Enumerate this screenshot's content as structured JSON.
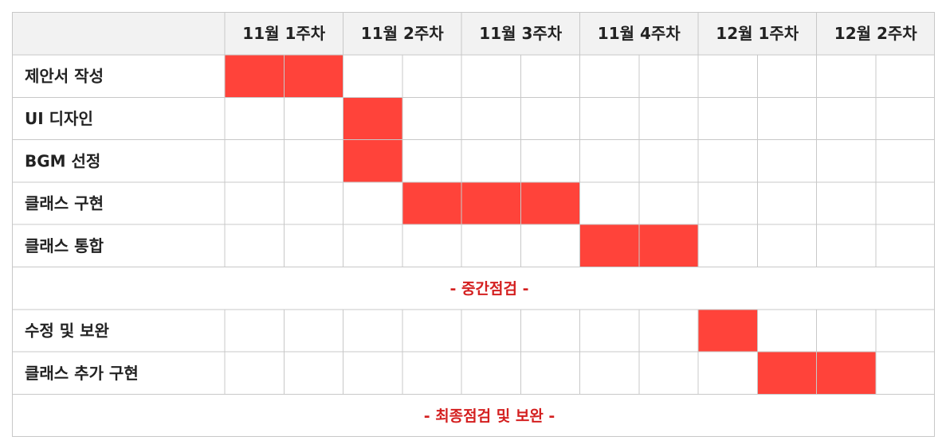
{
  "chart_data": {
    "type": "gantt",
    "weeks": [
      "11월 1주차",
      "11월 2주차",
      "11월 3주차",
      "11월 4주차",
      "12월 1주차",
      "12월 2주차"
    ],
    "slots_per_week": 2,
    "rows": [
      {
        "kind": "task",
        "label": "제안서 작성",
        "start_slot": 0,
        "end_slot": 1
      },
      {
        "kind": "task",
        "label": "UI 디자인",
        "start_slot": 2,
        "end_slot": 2
      },
      {
        "kind": "task",
        "label": "BGM 선정",
        "start_slot": 2,
        "end_slot": 2
      },
      {
        "kind": "task",
        "label": "클래스 구현",
        "start_slot": 3,
        "end_slot": 5
      },
      {
        "kind": "task",
        "label": "클래스 통합",
        "start_slot": 6,
        "end_slot": 7
      },
      {
        "kind": "milestone",
        "label": "- 중간점검 -"
      },
      {
        "kind": "task",
        "label": "수정 및 보완",
        "start_slot": 8,
        "end_slot": 8
      },
      {
        "kind": "task",
        "label": "클래스 추가 구현",
        "start_slot": 9,
        "end_slot": 10
      },
      {
        "kind": "milestone",
        "label": "- 최종점검 및 보완 -"
      }
    ],
    "bar_color": "#ff433a",
    "milestone_color": "#d42020",
    "header_color": "#f2f2f2",
    "grid_color": "#c8c8c8"
  }
}
